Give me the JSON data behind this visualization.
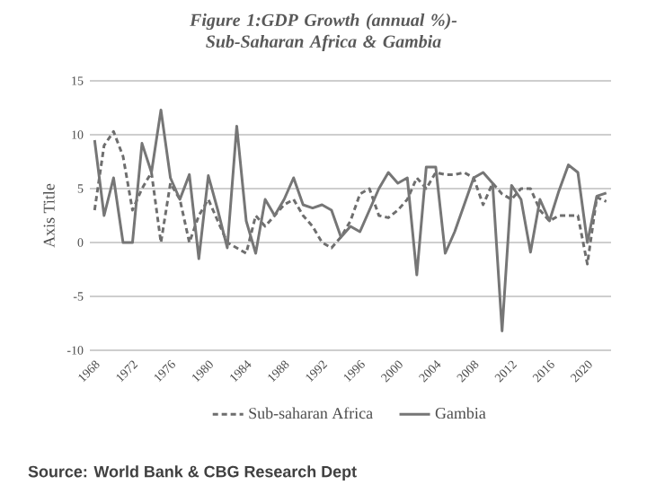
{
  "chart_data": {
    "type": "line",
    "title": "Figure 1:GDP Growth (annual %)- Sub-Saharan Africa & Gambia",
    "ylabel": "Axis Title",
    "x": [
      1968,
      1969,
      1970,
      1971,
      1972,
      1973,
      1974,
      1975,
      1976,
      1977,
      1978,
      1979,
      1980,
      1981,
      1982,
      1983,
      1984,
      1985,
      1986,
      1987,
      1988,
      1989,
      1990,
      1991,
      1992,
      1993,
      1994,
      1995,
      1996,
      1997,
      1998,
      1999,
      2000,
      2001,
      2002,
      2003,
      2004,
      2005,
      2006,
      2007,
      2008,
      2009,
      2010,
      2011,
      2012,
      2013,
      2014,
      2015,
      2016,
      2017,
      2018,
      2019,
      2020,
      2021,
      2022
    ],
    "series": [
      {
        "name": "Sub-saharan Africa",
        "color": "#6e6e6e",
        "line_style": "dashed",
        "values": [
          3,
          9,
          10.3,
          8,
          3,
          5,
          6.5,
          0,
          5.5,
          4,
          0,
          2.5,
          4,
          2,
          0,
          -0.5,
          -1,
          2.5,
          1.5,
          2.5,
          3.5,
          4,
          2.5,
          1.5,
          0,
          -0.5,
          0.5,
          2,
          4.5,
          5,
          2.5,
          2.3,
          3,
          4,
          6,
          5,
          6.5,
          6.3,
          6.3,
          6.5,
          6,
          3.5,
          5.5,
          4.5,
          4,
          5,
          5,
          3,
          2,
          2.5,
          2.5,
          2.5,
          -2,
          4.2,
          3.8
        ]
      },
      {
        "name": "Gambia",
        "color": "#767676",
        "line_style": "solid",
        "values": [
          9.5,
          2.5,
          6,
          0,
          0,
          9.2,
          6.5,
          12.3,
          6,
          4,
          6.3,
          -1.5,
          6.2,
          3,
          -0.5,
          10.8,
          2,
          -1,
          4,
          2.5,
          4,
          6,
          3.5,
          3.2,
          3.5,
          3,
          0.5,
          1.5,
          1,
          3,
          5,
          6.5,
          5.5,
          6,
          -3,
          7,
          7,
          -1,
          1,
          3.5,
          6,
          6.5,
          5.5,
          -8.2,
          5.3,
          4,
          -0.9,
          4,
          2,
          4.8,
          7.2,
          6.5,
          0,
          4.3,
          4.6
        ]
      }
    ],
    "xlim": [
      1967.5,
      2022.5
    ],
    "xticks": [
      1968,
      1972,
      1976,
      1980,
      1984,
      1988,
      1992,
      1996,
      2000,
      2004,
      2008,
      2012,
      2016,
      2020
    ],
    "ylim": [
      -10,
      15
    ],
    "yticks": [
      -10,
      -5,
      0,
      5,
      10,
      15
    ],
    "grid": "y",
    "legend": "bottom",
    "marker": "none",
    "annotations": [
      "Source: World Bank & CBG Research Dept"
    ]
  }
}
